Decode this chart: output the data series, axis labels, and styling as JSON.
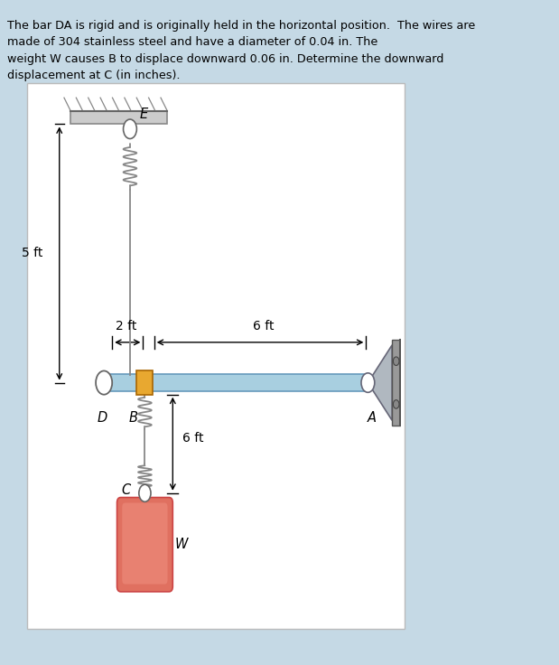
{
  "bg_outer": "#c5d9e5",
  "bg_inner": "#ffffff",
  "problem_text_lines": [
    "The bar DA is rigid and is originally held in the horizontal position.  The wires are",
    "made of 304 stainless steel and have a diameter of 0.04 in. The",
    "weight W causes B to displace downward 0.06 in. Determine the downward",
    "displacement at C (in inches)."
  ],
  "bar_color": "#a8cfe0",
  "bar_edge_color": "#7aaabb",
  "spring_color": "#888888",
  "weight_color": "#e87868",
  "weight_highlight": "#f09888",
  "pin_color": "#aabbcc",
  "bracket_color": "#999999",
  "ceiling_color": "#cccccc",
  "ceiling_edge": "#888888",
  "dim_color": "#111111",
  "label_color": "#111111"
}
